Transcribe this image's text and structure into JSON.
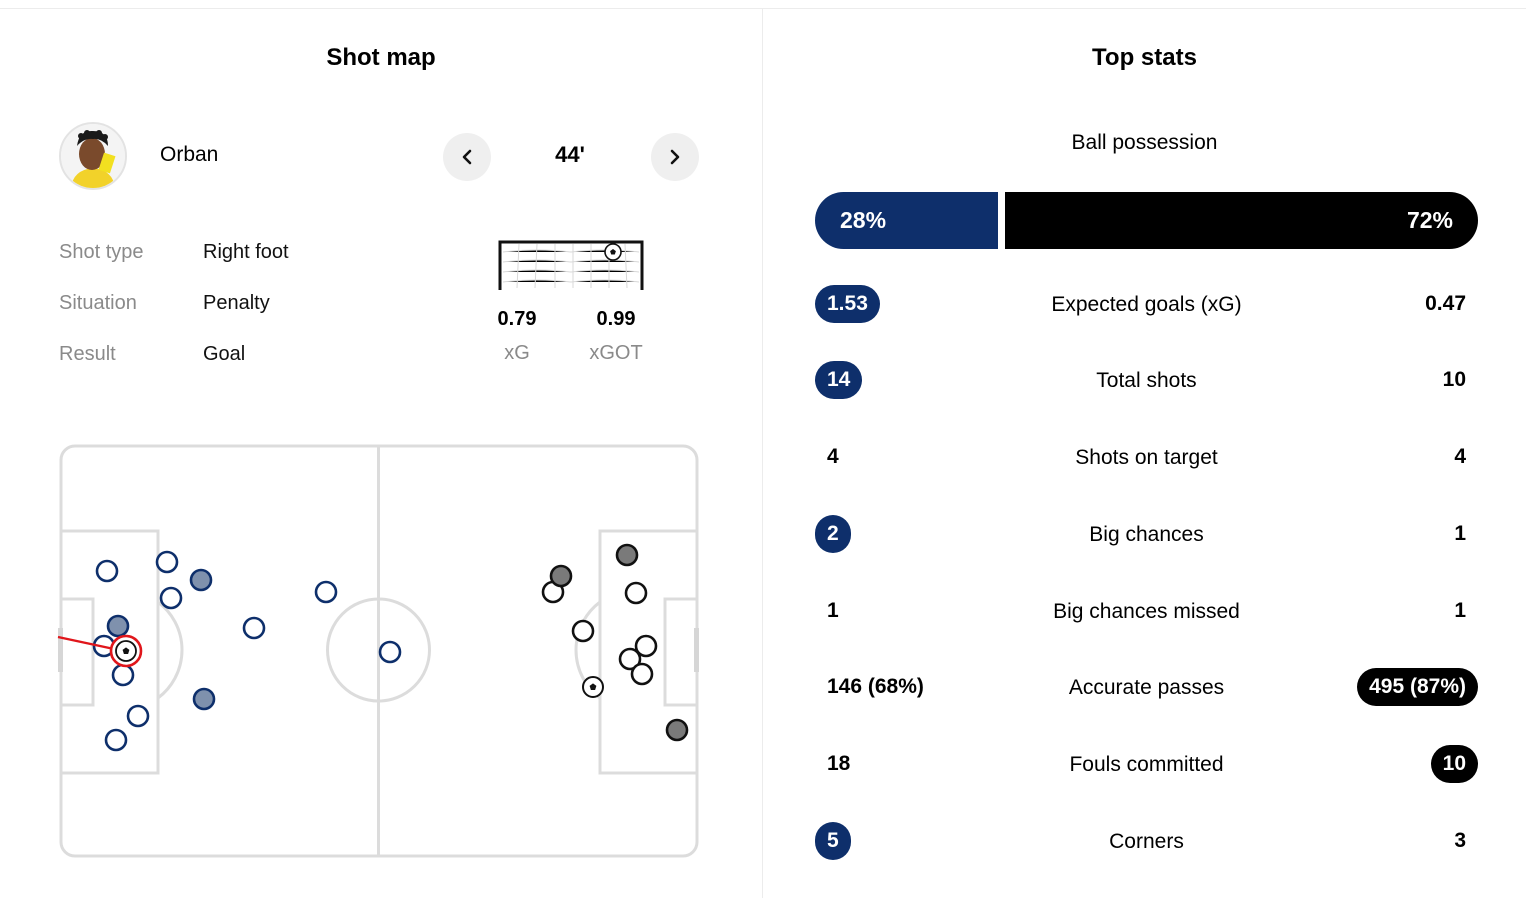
{
  "colors": {
    "home": "#0e2f6b",
    "away": "#000000",
    "home_shot_fill": "#7f91ad",
    "away_shot_fill": "#7a7a7a",
    "selected": "#e0161b"
  },
  "shot_map": {
    "title": "Shot map",
    "player_name": "Orban",
    "minute": "44'",
    "prev_icon": "chevron-left-icon",
    "next_icon": "chevron-right-icon",
    "details": [
      {
        "label": "Shot type",
        "value": "Right foot"
      },
      {
        "label": "Situation",
        "value": "Penalty"
      },
      {
        "label": "Result",
        "value": "Goal"
      }
    ],
    "xg": {
      "value": "0.79",
      "label": "xG"
    },
    "xgot": {
      "value": "0.99",
      "label": "xGOT"
    }
  },
  "top_stats": {
    "title": "Top stats",
    "possession": {
      "label": "Ball possession",
      "home": "28%",
      "away": "72%",
      "home_value": 28,
      "away_value": 72
    },
    "rows": [
      {
        "label": "Expected goals (xG)",
        "home": "1.53",
        "away": "0.47",
        "highlight": "home"
      },
      {
        "label": "Total shots",
        "home": "14",
        "away": "10",
        "highlight": "home"
      },
      {
        "label": "Shots on target",
        "home": "4",
        "away": "4",
        "highlight": "none"
      },
      {
        "label": "Big chances",
        "home": "2",
        "away": "1",
        "highlight": "home"
      },
      {
        "label": "Big chances missed",
        "home": "1",
        "away": "1",
        "highlight": "none"
      },
      {
        "label": "Accurate passes",
        "home": "146 (68%)",
        "away": "495 (87%)",
        "highlight": "away"
      },
      {
        "label": "Fouls committed",
        "home": "18",
        "away": "10",
        "highlight": "away"
      },
      {
        "label": "Corners",
        "home": "5",
        "away": "3",
        "highlight": "home"
      }
    ]
  }
}
